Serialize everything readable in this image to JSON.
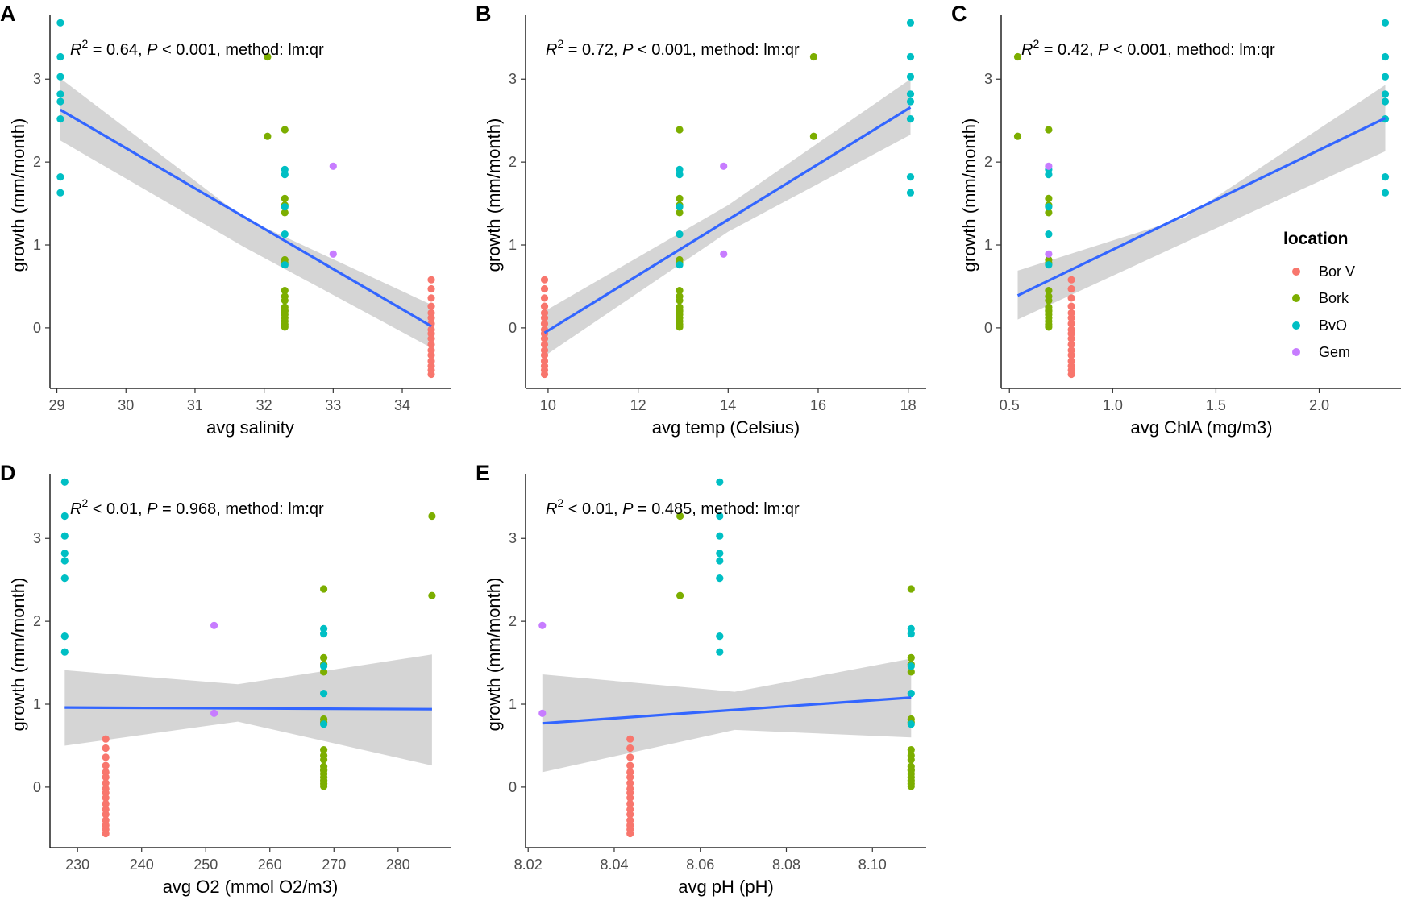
{
  "figure": {
    "legend": {
      "title": "location",
      "entries": [
        {
          "label": "Bor V",
          "color": "#F8766D"
        },
        {
          "label": "Bork",
          "color": "#7CAE00"
        },
        {
          "label": "BvO",
          "color": "#00BFC4"
        },
        {
          "label": "Gem",
          "color": "#C77CFF"
        }
      ]
    },
    "colors": {
      "fit_line": "#3366FF",
      "confidence_band": "#d3d3d3",
      "axis": "#000000"
    }
  },
  "chart_data": [
    {
      "panel": "A",
      "type": "scatter",
      "xlabel": "avg salinity",
      "ylabel": "growth (mm/month)",
      "annotation": {
        "r2": " = 0.64, ",
        "p": " < 0.001, method: lm:qr"
      },
      "xlim": [
        28.9,
        34.7
      ],
      "ylim": [
        -0.73,
        3.78
      ],
      "xticks": [
        29,
        30,
        31,
        32,
        33,
        34
      ],
      "yticks": [
        0,
        1,
        2,
        3
      ],
      "fit": {
        "x": [
          29.05,
          34.42
        ],
        "y": [
          2.63,
          0.02
        ],
        "band": {
          "x": [
            29.05,
            31.7,
            34.42
          ],
          "lower": [
            2.26,
            0.98,
            -0.24
          ],
          "upper": [
            3.01,
            1.33,
            0.28
          ]
        }
      },
      "series": [
        {
          "name": "Bor V",
          "x": [
            34.42,
            34.42,
            34.42,
            34.42,
            34.42,
            34.42,
            34.42,
            34.42,
            34.42,
            34.42,
            34.42,
            34.42,
            34.42,
            34.42,
            34.42,
            34.42,
            34.42
          ],
          "y": [
            0.58,
            0.47,
            0.36,
            0.26,
            0.18,
            0.12,
            0.05,
            -0.02,
            -0.07,
            -0.13,
            -0.2,
            -0.27,
            -0.33,
            -0.4,
            -0.46,
            -0.51,
            -0.56
          ]
        },
        {
          "name": "Bork",
          "x": [
            32.05,
            32.05,
            32.3,
            32.3,
            32.3,
            32.3,
            32.3,
            32.3,
            32.3,
            32.3,
            32.3,
            32.3,
            32.3,
            32.3,
            32.3,
            32.3,
            32.3,
            32.3,
            32.3
          ],
          "y": [
            3.27,
            2.31,
            2.39,
            1.56,
            1.48,
            1.39,
            0.82,
            0.78,
            0.45,
            0.38,
            0.33,
            0.25,
            0.2,
            0.16,
            0.12,
            0.08,
            0.04,
            0.01,
            0.21
          ]
        },
        {
          "name": "BvO",
          "x": [
            29.05,
            29.05,
            29.05,
            29.05,
            29.05,
            29.05,
            29.05,
            29.05,
            32.3,
            32.3,
            32.3,
            32.3,
            32.3
          ],
          "y": [
            3.68,
            3.27,
            3.03,
            2.82,
            2.73,
            2.52,
            1.82,
            1.63,
            1.91,
            1.85,
            1.46,
            1.13,
            0.76
          ]
        },
        {
          "name": "Gem",
          "x": [
            33.0,
            33.0
          ],
          "y": [
            1.95,
            0.89
          ]
        }
      ]
    },
    {
      "panel": "B",
      "type": "scatter",
      "xlabel": "avg temp (Celsius)",
      "ylabel": "growth (mm/month)",
      "annotation": {
        "r2": " = 0.72, ",
        "p": " < 0.001, method: lm:qr"
      },
      "xlim": [
        9.5,
        18.4
      ],
      "ylim": [
        -0.73,
        3.78
      ],
      "xticks": [
        10,
        12,
        14,
        16,
        18
      ],
      "yticks": [
        0,
        1,
        2,
        3
      ],
      "fit": {
        "x": [
          9.92,
          18.05
        ],
        "y": [
          -0.06,
          2.66
        ],
        "band": {
          "x": [
            9.92,
            14.0,
            18.05
          ],
          "lower": [
            -0.34,
            1.16,
            2.33
          ],
          "upper": [
            0.2,
            1.48,
            3.0
          ]
        }
      },
      "series": [
        {
          "name": "Bor V",
          "x": [
            9.92,
            9.92,
            9.92,
            9.92,
            9.92,
            9.92,
            9.92,
            9.92,
            9.92,
            9.92,
            9.92,
            9.92,
            9.92,
            9.92,
            9.92,
            9.92,
            9.92
          ],
          "y": [
            0.58,
            0.47,
            0.36,
            0.26,
            0.18,
            0.12,
            0.05,
            -0.02,
            -0.07,
            -0.13,
            -0.2,
            -0.27,
            -0.33,
            -0.4,
            -0.46,
            -0.51,
            -0.56
          ]
        },
        {
          "name": "Bork",
          "x": [
            15.9,
            15.9,
            12.92,
            12.92,
            12.92,
            12.92,
            12.92,
            12.92,
            12.92,
            12.92,
            12.92,
            12.92,
            12.92,
            12.92,
            12.92,
            12.92,
            12.92,
            12.92,
            12.92
          ],
          "y": [
            3.27,
            2.31,
            2.39,
            1.56,
            1.48,
            1.39,
            0.82,
            0.78,
            0.45,
            0.38,
            0.33,
            0.25,
            0.2,
            0.16,
            0.12,
            0.08,
            0.04,
            0.01,
            0.21
          ]
        },
        {
          "name": "BvO",
          "x": [
            18.05,
            18.05,
            18.05,
            18.05,
            18.05,
            18.05,
            18.05,
            18.05,
            12.92,
            12.92,
            12.92,
            12.92,
            12.92
          ],
          "y": [
            3.68,
            3.27,
            3.03,
            2.82,
            2.73,
            2.52,
            1.82,
            1.63,
            1.91,
            1.85,
            1.46,
            1.13,
            0.76
          ]
        },
        {
          "name": "Gem",
          "x": [
            13.9,
            13.9
          ],
          "y": [
            1.95,
            0.89
          ]
        }
      ]
    },
    {
      "panel": "C",
      "type": "scatter",
      "xlabel": "avg ChlA (mg/m3)",
      "ylabel": "growth (mm/month)",
      "annotation": {
        "r2": " = 0.42, ",
        "p": " < 0.001, method: lm:qr"
      },
      "xlim": [
        0.46,
        2.4
      ],
      "ylim": [
        -0.73,
        3.78
      ],
      "xticks": [
        0.5,
        1.0,
        1.5,
        2.0
      ],
      "xtick_labels": [
        "0.5",
        "1.0",
        "1.5",
        "2.0"
      ],
      "yticks": [
        0,
        1,
        2,
        3
      ],
      "fit": {
        "x": [
          0.54,
          2.32
        ],
        "y": [
          0.39,
          2.53
        ],
        "band": {
          "x": [
            0.54,
            1.35,
            2.32
          ],
          "lower": [
            0.1,
            1.03,
            2.13
          ],
          "upper": [
            0.69,
            1.33,
            2.93
          ]
        }
      },
      "series": [
        {
          "name": "Bor V",
          "x": [
            0.8,
            0.8,
            0.8,
            0.8,
            0.8,
            0.8,
            0.8,
            0.8,
            0.8,
            0.8,
            0.8,
            0.8,
            0.8,
            0.8,
            0.8,
            0.8,
            0.8
          ],
          "y": [
            0.58,
            0.47,
            0.36,
            0.26,
            0.18,
            0.12,
            0.05,
            -0.02,
            -0.07,
            -0.13,
            -0.2,
            -0.27,
            -0.33,
            -0.4,
            -0.46,
            -0.51,
            -0.56
          ]
        },
        {
          "name": "Bork",
          "x": [
            0.54,
            0.54,
            0.69,
            0.69,
            0.69,
            0.69,
            0.69,
            0.69,
            0.69,
            0.69,
            0.69,
            0.69,
            0.69,
            0.69,
            0.69,
            0.69,
            0.69,
            0.69,
            0.69
          ],
          "y": [
            3.27,
            2.31,
            2.39,
            1.56,
            1.48,
            1.39,
            0.82,
            0.78,
            0.45,
            0.38,
            0.33,
            0.25,
            0.2,
            0.16,
            0.12,
            0.08,
            0.04,
            0.01,
            0.21
          ]
        },
        {
          "name": "BvO",
          "x": [
            2.32,
            2.32,
            2.32,
            2.32,
            2.32,
            2.32,
            2.32,
            2.32,
            0.69,
            0.69,
            0.69,
            0.69,
            0.69
          ],
          "y": [
            3.68,
            3.27,
            3.03,
            2.82,
            2.73,
            2.52,
            1.82,
            1.63,
            1.91,
            1.85,
            1.46,
            1.13,
            0.76
          ]
        },
        {
          "name": "Gem",
          "x": [
            0.69,
            0.69
          ],
          "y": [
            1.95,
            0.89
          ]
        }
      ]
    },
    {
      "panel": "D",
      "type": "scatter",
      "xlabel": "avg O2 (mmol O2/m3)",
      "ylabel": "growth (mm/month)",
      "annotation": {
        "r2": " < 0.01, ",
        "p": " = 0.968, method: lm:qr"
      },
      "xlim": [
        225.7,
        288.2
      ],
      "ylim": [
        -0.73,
        3.78
      ],
      "xticks": [
        230,
        240,
        250,
        260,
        270,
        280
      ],
      "yticks": [
        0,
        1,
        2,
        3
      ],
      "fit": {
        "x": [
          228.0,
          285.3
        ],
        "y": [
          0.96,
          0.94
        ],
        "band": {
          "x": [
            228.0,
            255.0,
            285.3
          ],
          "lower": [
            0.5,
            0.79,
            0.26
          ],
          "upper": [
            1.41,
            1.24,
            1.6
          ]
        }
      },
      "series": [
        {
          "name": "Bor V",
          "x": [
            234.4,
            234.4,
            234.4,
            234.4,
            234.4,
            234.4,
            234.4,
            234.4,
            234.4,
            234.4,
            234.4,
            234.4,
            234.4,
            234.4,
            234.4,
            234.4,
            234.4
          ],
          "y": [
            0.58,
            0.47,
            0.36,
            0.26,
            0.18,
            0.12,
            0.05,
            -0.02,
            -0.07,
            -0.13,
            -0.2,
            -0.27,
            -0.33,
            -0.4,
            -0.46,
            -0.51,
            -0.56
          ]
        },
        {
          "name": "Bork",
          "x": [
            285.3,
            285.3,
            268.4,
            268.4,
            268.4,
            268.4,
            268.4,
            268.4,
            268.4,
            268.4,
            268.4,
            268.4,
            268.4,
            268.4,
            268.4,
            268.4,
            268.4,
            268.4,
            268.4
          ],
          "y": [
            3.27,
            2.31,
            2.39,
            1.56,
            1.48,
            1.39,
            0.82,
            0.78,
            0.45,
            0.38,
            0.33,
            0.25,
            0.2,
            0.16,
            0.12,
            0.08,
            0.04,
            0.01,
            0.21
          ]
        },
        {
          "name": "BvO",
          "x": [
            228.0,
            228.0,
            228.0,
            228.0,
            228.0,
            228.0,
            228.0,
            228.0,
            268.4,
            268.4,
            268.4,
            268.4,
            268.4
          ],
          "y": [
            3.68,
            3.27,
            3.03,
            2.82,
            2.73,
            2.52,
            1.82,
            1.63,
            1.91,
            1.85,
            1.46,
            1.13,
            0.76
          ]
        },
        {
          "name": "Gem",
          "x": [
            251.3,
            251.3
          ],
          "y": [
            1.95,
            0.89
          ]
        }
      ]
    },
    {
      "panel": "E",
      "type": "scatter",
      "xlabel": "avg pH (pH)",
      "ylabel": "growth (mm/month)",
      "annotation": {
        "r2": " < 0.01, ",
        "p": " = 0.485, method: lm:qr"
      },
      "xlim": [
        8.0194,
        8.1125
      ],
      "ylim": [
        -0.73,
        3.78
      ],
      "xticks": [
        8.02,
        8.04,
        8.06,
        8.08,
        8.1
      ],
      "xtick_labels": [
        "8.02",
        "8.04",
        "8.06",
        "8.08",
        "8.10"
      ],
      "yticks": [
        0,
        1,
        2,
        3
      ],
      "fit": {
        "x": [
          8.0233,
          8.109
        ],
        "y": [
          0.77,
          1.08
        ],
        "band": {
          "x": [
            8.0233,
            8.068,
            8.109
          ],
          "lower": [
            0.18,
            0.69,
            0.6
          ],
          "upper": [
            1.36,
            1.15,
            1.55
          ]
        }
      },
      "series": [
        {
          "name": "Bor V",
          "x": [
            8.0437,
            8.0437,
            8.0437,
            8.0437,
            8.0437,
            8.0437,
            8.0437,
            8.0437,
            8.0437,
            8.0437,
            8.0437,
            8.0437,
            8.0437,
            8.0437,
            8.0437,
            8.0437,
            8.0437
          ],
          "y": [
            0.58,
            0.47,
            0.36,
            0.26,
            0.18,
            0.12,
            0.05,
            -0.02,
            -0.07,
            -0.13,
            -0.2,
            -0.27,
            -0.33,
            -0.4,
            -0.46,
            -0.51,
            -0.56
          ]
        },
        {
          "name": "Bork",
          "x": [
            8.0553,
            8.0553,
            8.109,
            8.109,
            8.109,
            8.109,
            8.109,
            8.109,
            8.109,
            8.109,
            8.109,
            8.109,
            8.109,
            8.109,
            8.109,
            8.109,
            8.109,
            8.109,
            8.109
          ],
          "y": [
            3.27,
            2.31,
            2.39,
            1.56,
            1.48,
            1.39,
            0.82,
            0.78,
            0.45,
            0.38,
            0.33,
            0.25,
            0.2,
            0.16,
            0.12,
            0.08,
            0.04,
            0.01,
            0.21
          ]
        },
        {
          "name": "BvO",
          "x": [
            8.0645,
            8.0645,
            8.0645,
            8.0645,
            8.0645,
            8.0645,
            8.0645,
            8.0645,
            8.109,
            8.109,
            8.109,
            8.109,
            8.109
          ],
          "y": [
            3.68,
            3.27,
            3.03,
            2.82,
            2.73,
            2.52,
            1.82,
            1.63,
            1.91,
            1.85,
            1.46,
            1.13,
            0.76
          ]
        },
        {
          "name": "Gem",
          "x": [
            8.0233,
            8.0233
          ],
          "y": [
            1.95,
            0.89
          ]
        }
      ]
    }
  ]
}
